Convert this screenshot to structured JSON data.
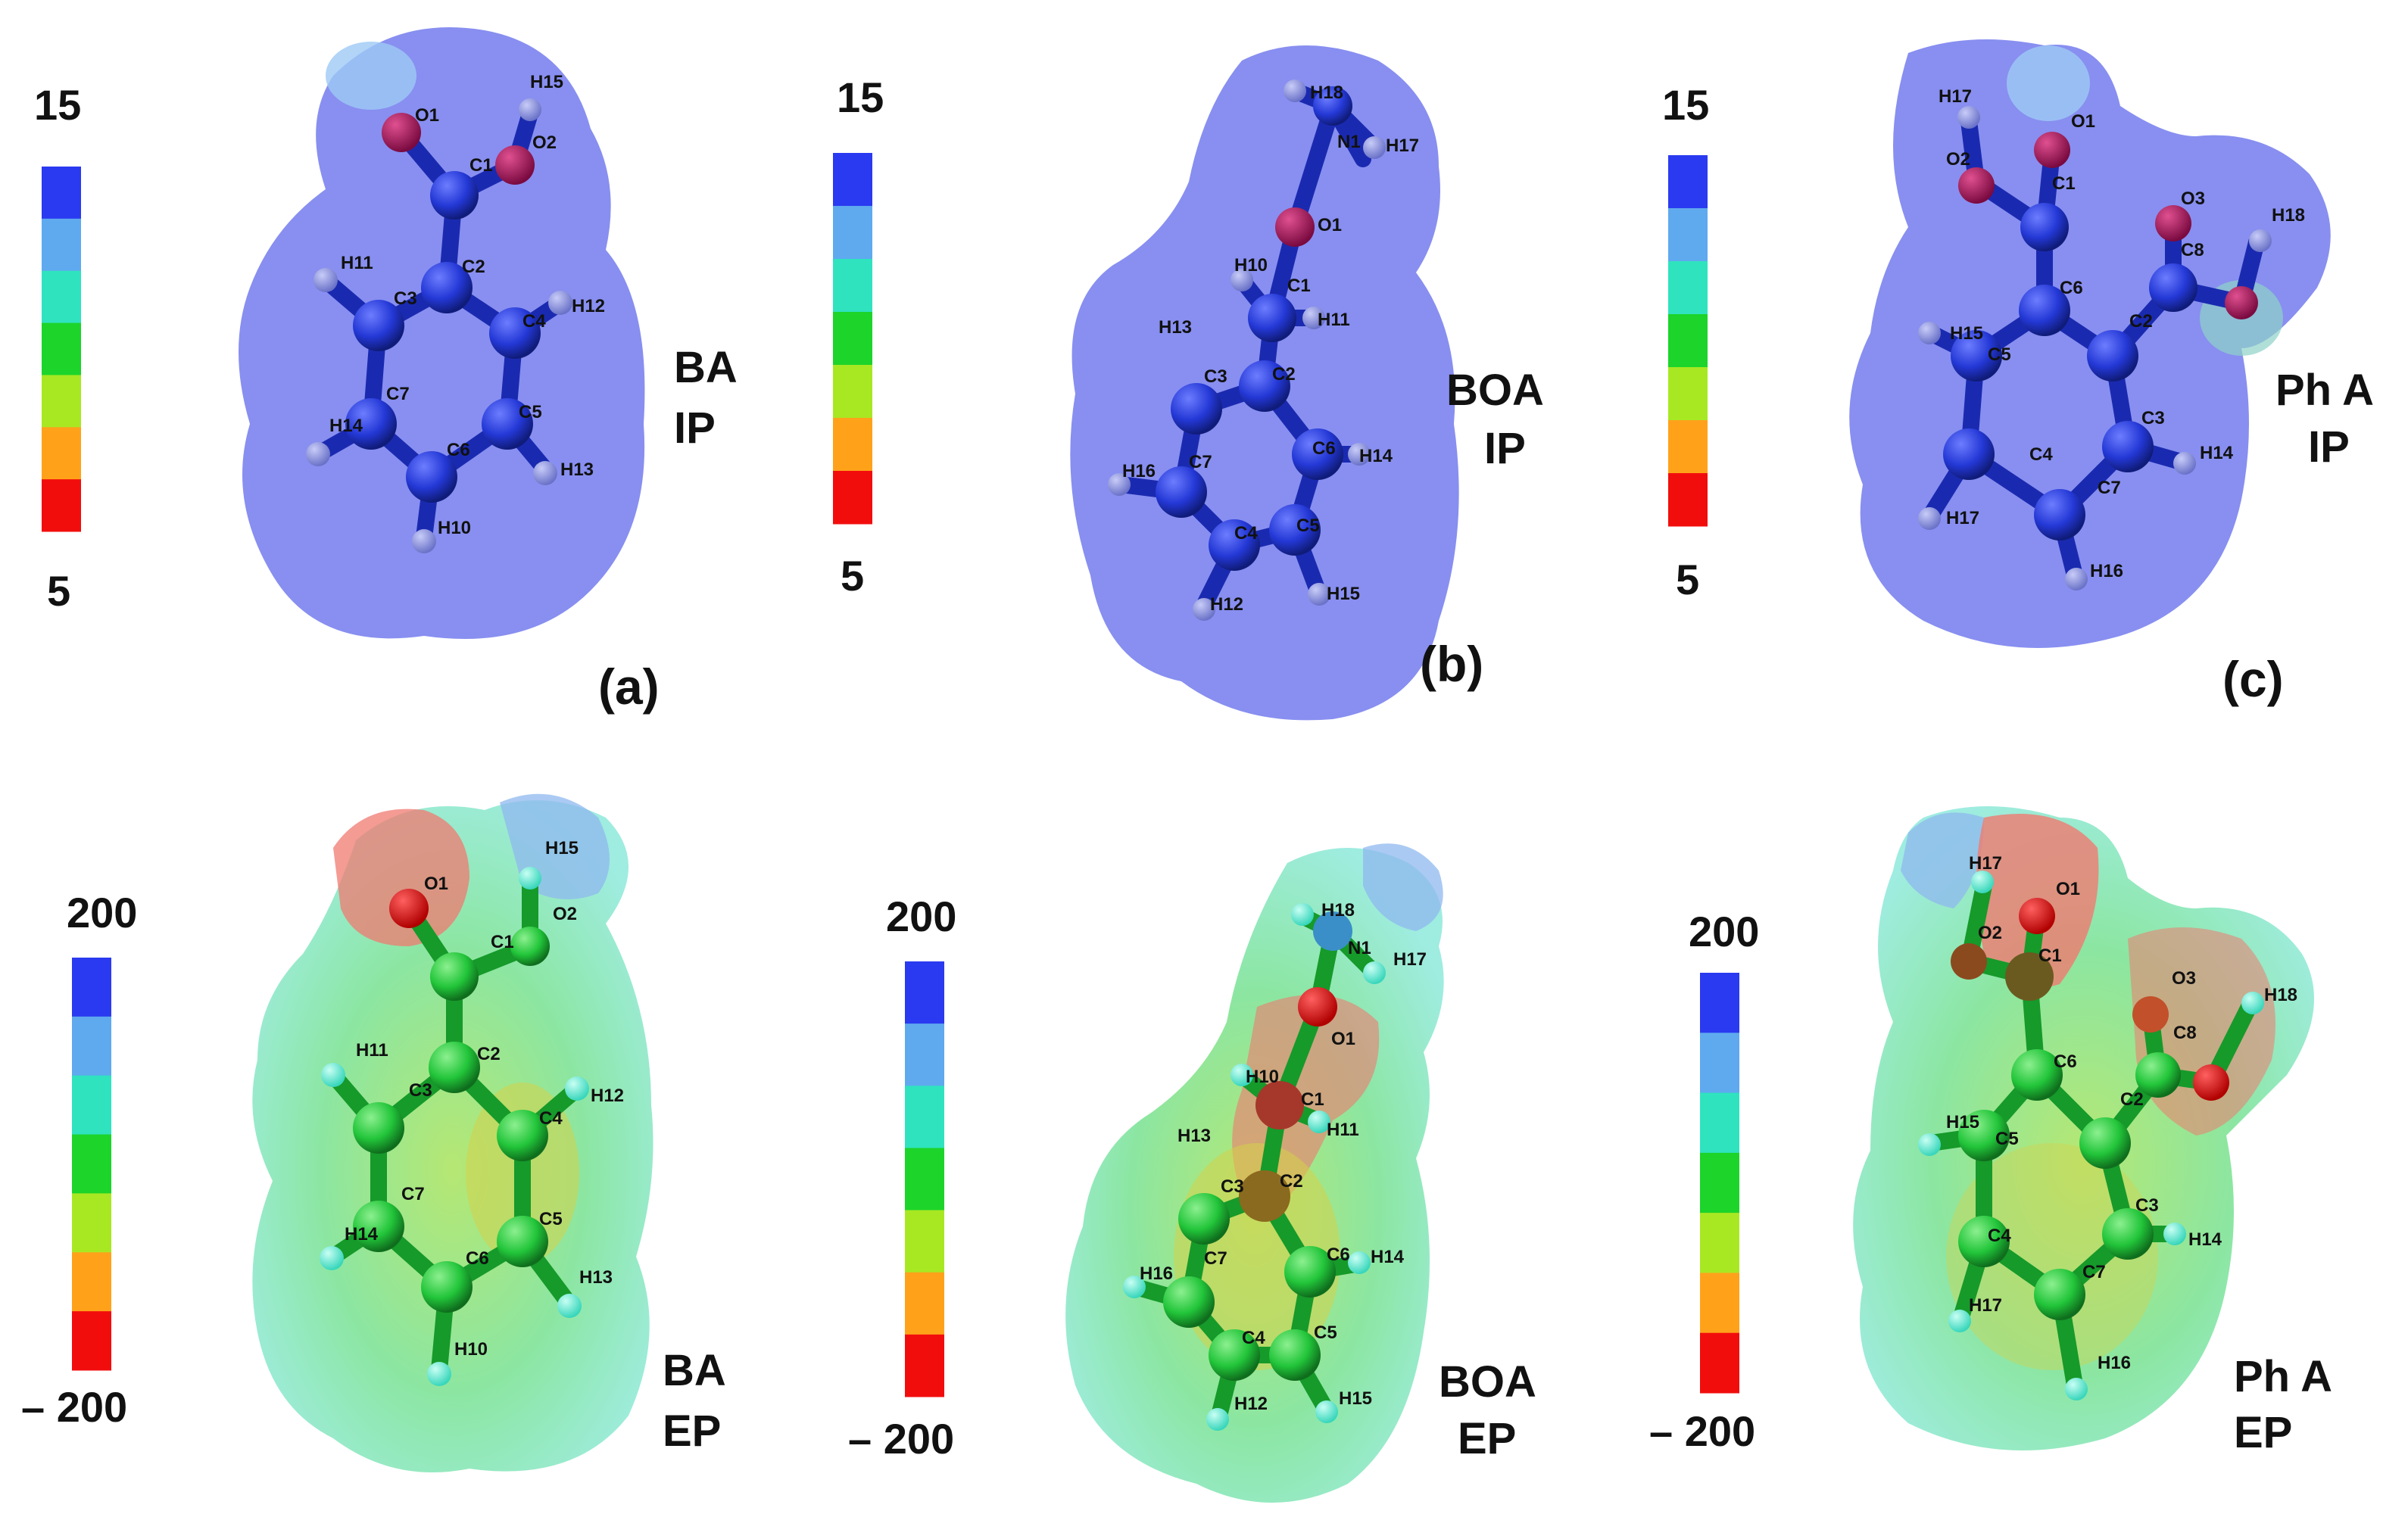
{
  "colorbar_colors": [
    "#2a3af0",
    "#5fa9ef",
    "#2fe3bf",
    "#1cd42a",
    "#a8e823",
    "#ffa21a",
    "#f20d0d"
  ],
  "colors": {
    "ip_surface": "#7b83ee",
    "atom_ip": "#2438d6",
    "atom_ep": "#22c53a",
    "oxygen": "#b01060",
    "text": "#111111"
  },
  "panels": {
    "a_ip": {
      "scale_max": "15",
      "scale_min": "5",
      "name": "BA",
      "property": "IP",
      "panel_label": "(a)"
    },
    "b_ip": {
      "scale_max": "15",
      "scale_min": "5",
      "name": "BOA",
      "property": "IP",
      "panel_label": "(b)"
    },
    "c_ip": {
      "scale_max": "15",
      "scale_min": "5",
      "name": "Ph A",
      "property": "IP",
      "panel_label": "(c)"
    },
    "a_ep": {
      "scale_max": "200",
      "scale_min": "– 200",
      "name": "BA",
      "property": "EP"
    },
    "b_ep": {
      "scale_max": "200",
      "scale_min": "– 200",
      "name": "BOA",
      "property": "EP"
    },
    "c_ep": {
      "scale_max": "200",
      "scale_min": "– 200",
      "name": "Ph A",
      "property": "EP"
    }
  },
  "molecules": {
    "BA": [
      "O1",
      "H15",
      "C1",
      "O2",
      "C2",
      "H11",
      "C3",
      "C4",
      "H12",
      "C7",
      "C5",
      "H14",
      "C6",
      "H13",
      "H10"
    ],
    "BOA": [
      "H18",
      "N1",
      "H17",
      "O1",
      "H10",
      "C1",
      "H11",
      "H13",
      "C2",
      "C3",
      "C7",
      "C6",
      "H14",
      "H16",
      "C4",
      "C5",
      "H12",
      "H15"
    ],
    "PhA": [
      "H17",
      "O1",
      "O2",
      "C1",
      "O3",
      "H18",
      "C8",
      "C6",
      "C2",
      "H15",
      "C5",
      "C3",
      "C4",
      "H14",
      "C7",
      "H17",
      "H16"
    ]
  }
}
